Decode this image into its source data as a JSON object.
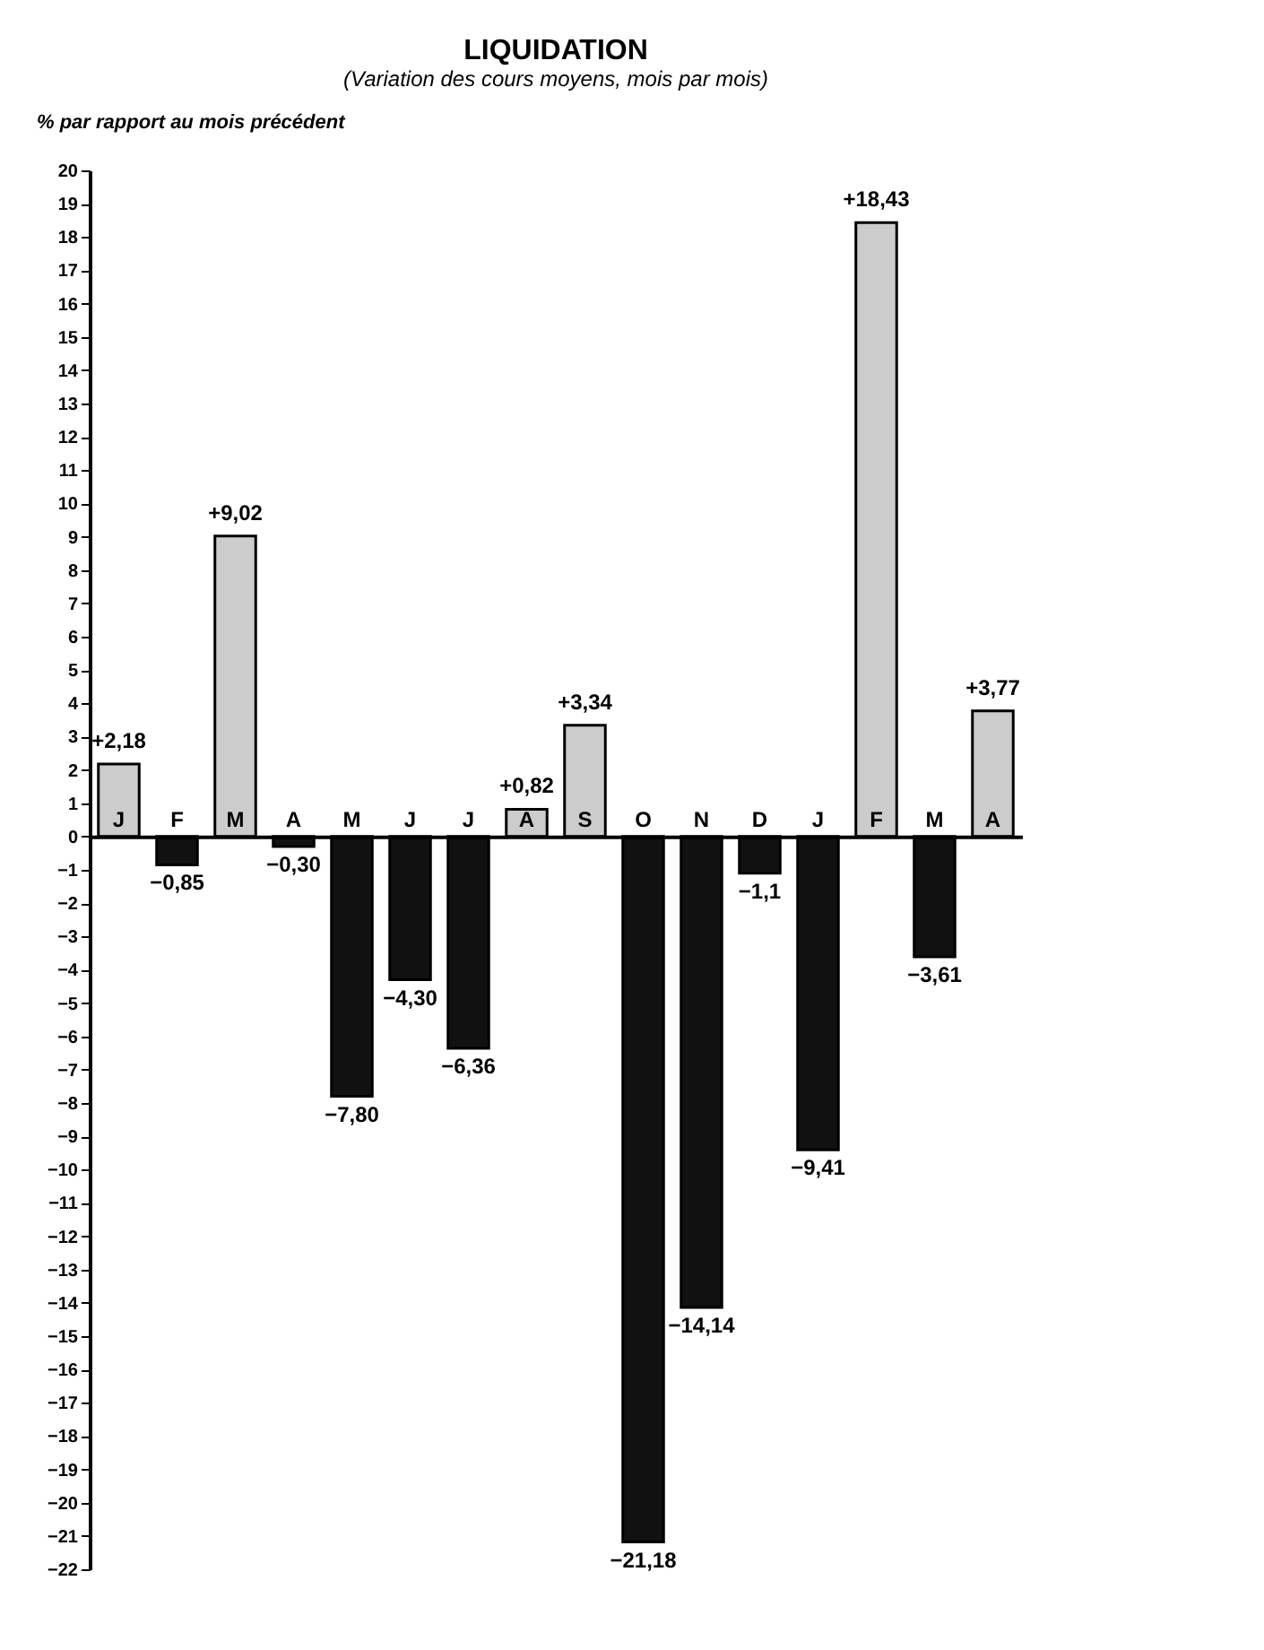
{
  "chart_data": {
    "type": "bar",
    "title": "LIQUIDATION",
    "subtitle": "(Variation des cours moyens, mois par mois)",
    "ylabel": "% par rapport au mois précédent",
    "categories": [
      "J",
      "F",
      "M",
      "A",
      "M",
      "J",
      "J",
      "A",
      "S",
      "O",
      "N",
      "D",
      "J",
      "F",
      "M",
      "A"
    ],
    "values": [
      2.18,
      -0.85,
      9.02,
      -0.3,
      -7.8,
      -4.3,
      -6.36,
      0.82,
      3.34,
      -21.18,
      -14.14,
      -1.1,
      -9.41,
      18.43,
      -3.61,
      3.77
    ],
    "colors": [
      "#cccccc",
      "#111111",
      "#cccccc",
      "#111111",
      "#111111",
      "#111111",
      "#111111",
      "#cccccc",
      "#cccccc",
      "#111111",
      "#111111",
      "#111111",
      "#111111",
      "#cccccc",
      "#111111",
      "#cccccc"
    ],
    "value_labels": [
      "+2,18",
      "−0,85",
      "+9,02",
      "−0,30",
      "−7,80",
      "−4,30",
      "−6,36",
      "+0,82",
      "+3,34",
      "−21,18",
      "−14,14",
      "−1,1",
      "−9,41",
      "+18,43",
      "−3,61",
      "+3,77"
    ],
    "ylim": [
      -22,
      20
    ],
    "yticks": [
      -22,
      -21,
      -20,
      -19,
      -18,
      -17,
      -16,
      -15,
      -14,
      -13,
      -12,
      -11,
      -10,
      -9,
      -8,
      -7,
      -6,
      -5,
      -4,
      -3,
      -2,
      -1,
      0,
      1,
      2,
      3,
      4,
      5,
      6,
      7,
      8,
      9,
      10,
      11,
      12,
      13,
      14,
      15,
      16,
      17,
      18,
      19,
      20
    ]
  }
}
